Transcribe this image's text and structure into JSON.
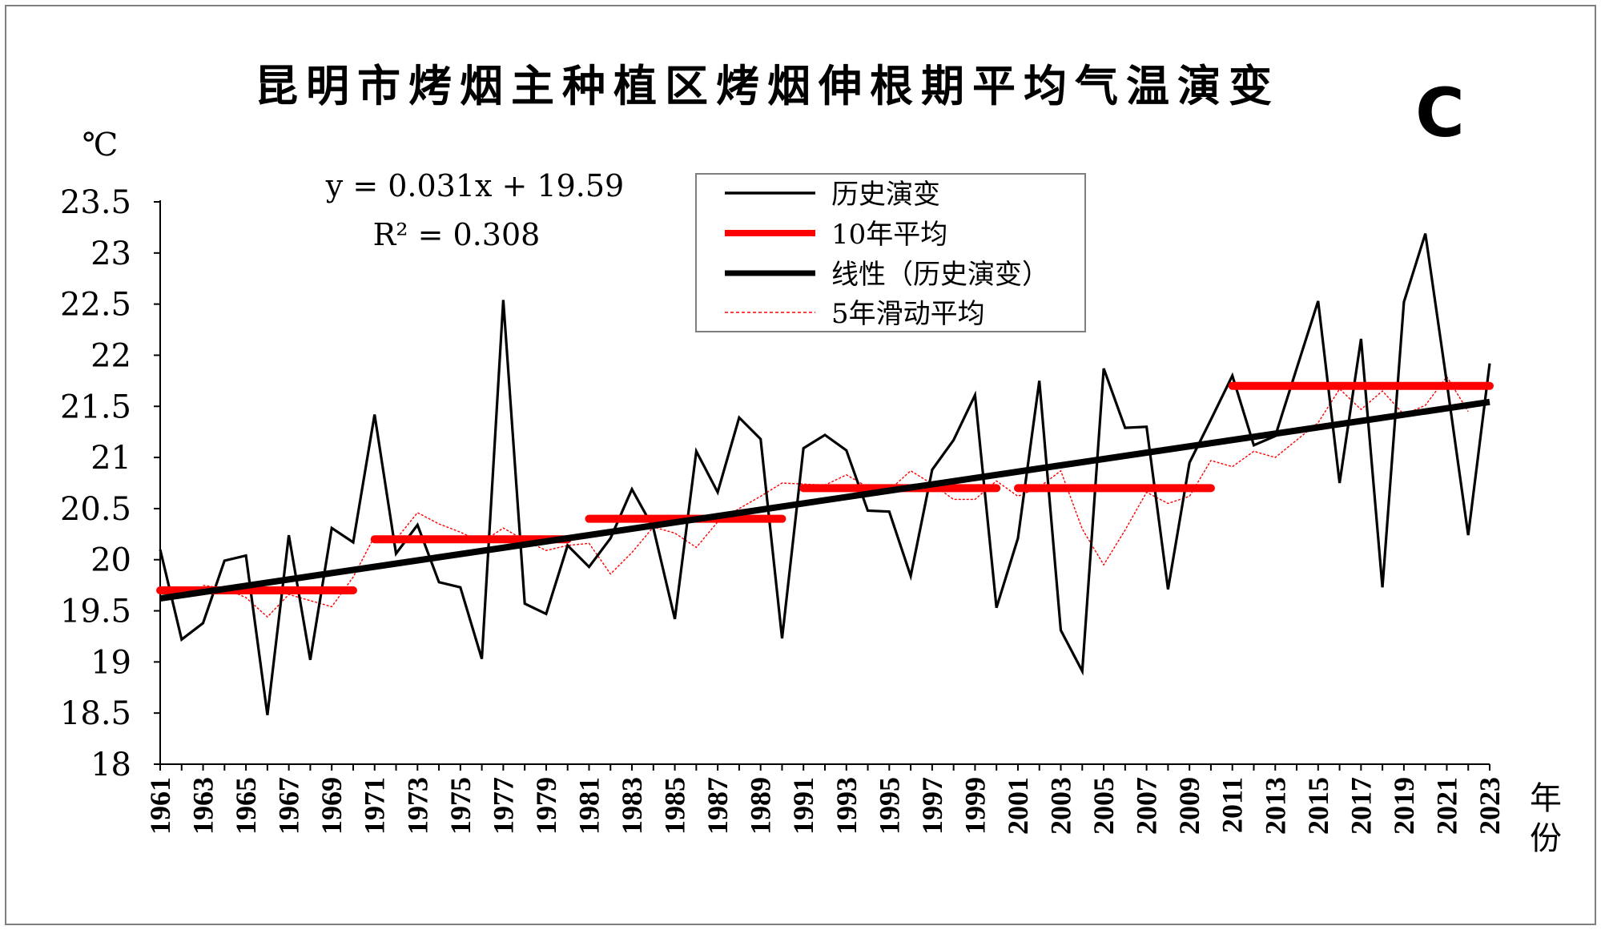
{
  "chart_data": {
    "type": "line",
    "title": "昆明市烤烟主种植区烤烟伸根期平均气温演变",
    "panel_label": "C",
    "ylabel": "℃",
    "xlabel": "年份",
    "ylim": [
      18,
      23.5
    ],
    "yticks": [
      "18",
      "18.5",
      "19",
      "19.5",
      "20",
      "20.5",
      "21",
      "21.5",
      "22",
      "22.5",
      "23",
      "23.5"
    ],
    "x": [
      1961,
      1962,
      1963,
      1964,
      1965,
      1966,
      1967,
      1968,
      1969,
      1970,
      1971,
      1972,
      1973,
      1974,
      1975,
      1976,
      1977,
      1978,
      1979,
      1980,
      1981,
      1982,
      1983,
      1984,
      1985,
      1986,
      1987,
      1988,
      1989,
      1990,
      1991,
      1992,
      1993,
      1994,
      1995,
      1996,
      1997,
      1998,
      1999,
      2000,
      2001,
      2002,
      2003,
      2004,
      2005,
      2006,
      2007,
      2008,
      2009,
      2010,
      2011,
      2012,
      2013,
      2014,
      2015,
      2016,
      2017,
      2018,
      2019,
      2020,
      2021,
      2022,
      2023
    ],
    "xtick_labels": [
      "1961",
      "1963",
      "1965",
      "1967",
      "1969",
      "1971",
      "1973",
      "1975",
      "1977",
      "1979",
      "1981",
      "1983",
      "1985",
      "1987",
      "1989",
      "1991",
      "1993",
      "1995",
      "1997",
      "1999",
      "2001",
      "2003",
      "2005",
      "2007",
      "2009",
      "2011",
      "2013",
      "2015",
      "2017",
      "2019",
      "2021",
      "2023"
    ],
    "series": [
      {
        "name": "历史演变",
        "color": "#000000",
        "values": [
          20.1,
          19.22,
          19.38,
          19.99,
          20.04,
          18.48,
          20.24,
          19.02,
          20.31,
          20.17,
          21.42,
          20.06,
          20.34,
          19.78,
          19.73,
          19.03,
          22.54,
          19.57,
          19.47,
          20.14,
          19.93,
          20.21,
          20.69,
          20.31,
          19.42,
          21.06,
          20.66,
          21.39,
          21.18,
          19.23,
          21.09,
          21.22,
          21.07,
          20.48,
          20.47,
          19.84,
          20.88,
          21.17,
          21.61,
          19.53,
          20.21,
          21.75,
          19.31,
          18.91,
          21.87,
          21.29,
          21.3,
          19.71,
          20.95,
          21.37,
          21.8,
          21.12,
          21.21,
          21.87,
          22.53,
          20.75,
          22.16,
          19.73,
          22.52,
          23.19,
          21.73,
          20.24,
          21.92
        ]
      },
      {
        "name": "10年平均",
        "color": "#ff0000",
        "segments": [
          {
            "from": 1961,
            "to": 1970,
            "value": 19.7
          },
          {
            "from": 1971,
            "to": 1980,
            "value": 20.2
          },
          {
            "from": 1981,
            "to": 1990,
            "value": 20.4
          },
          {
            "from": 1991,
            "to": 2000,
            "value": 20.7
          },
          {
            "from": 2001,
            "to": 2010,
            "value": 20.7
          },
          {
            "from": 2011,
            "to": 2023,
            "value": 21.7
          }
        ]
      },
      {
        "name": "线性（历史演变）",
        "color": "#000000",
        "slope": 0.031,
        "intercept": 19.59
      },
      {
        "name": "5年滑动平均",
        "color": "#ff0000",
        "values": [
          null,
          null,
          19.75,
          19.72,
          19.63,
          19.44,
          19.66,
          19.6,
          19.54,
          19.83,
          20.23,
          20.2,
          20.46,
          20.35,
          20.27,
          20.17,
          20.31,
          20.19,
          20.09,
          20.14,
          20.16,
          19.86,
          20.07,
          20.32,
          20.26,
          20.12,
          20.37,
          20.5,
          20.62,
          20.75,
          20.74,
          20.73,
          20.83,
          20.71,
          20.68,
          20.87,
          20.74,
          20.59,
          20.59,
          20.77,
          20.62,
          20.71,
          20.87,
          20.3,
          19.95,
          20.29,
          20.66,
          20.55,
          20.62,
          20.97,
          20.91,
          21.06,
          21.0,
          21.17,
          21.34,
          21.67,
          21.47,
          21.65,
          21.42,
          21.51,
          21.79,
          21.45,
          null
        ]
      }
    ],
    "equation": "y = 0.031x + 19.59",
    "r_squared": "R² = 0.308",
    "legend": [
      "历史演变",
      "10年平均",
      "线性（历史演变）",
      "5年滑动平均"
    ],
    "legend_position": "top-center"
  }
}
